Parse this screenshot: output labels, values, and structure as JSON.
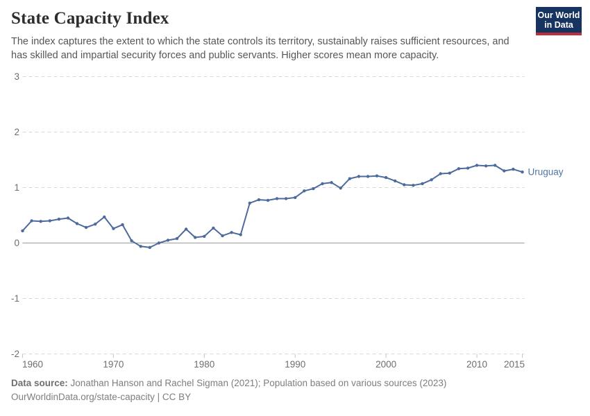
{
  "header": {
    "title": "State Capacity Index",
    "subtitle": "The index captures the extent to which the state controls its territory, sustainably raises sufficient resources, and has skilled and impartial security forces and public servants. Higher scores mean more capacity.",
    "logo": {
      "line1": "Our World",
      "line2": "in Data"
    }
  },
  "footer": {
    "source_label": "Data source:",
    "source_text": "Jonathan Hanson and Rachel Sigman (2021); Population based on various sources (2023)",
    "note": "OurWorldinData.org/state-capacity | CC BY"
  },
  "colors": {
    "line": "#4c6a9c",
    "entity_label": "#4f74a8",
    "grid": "#d9d9d9",
    "zero_line": "#9a9a9a",
    "axis_text": "#6e6e6e",
    "title": "#2d2d2d",
    "subtitle": "#565656",
    "footer": "#7e7e7e",
    "logo_bg": "#17335f",
    "logo_red": "#b9303c"
  },
  "chart_data": {
    "type": "line",
    "title": "State Capacity Index",
    "entity": "Uruguay",
    "xlabel": "",
    "ylabel": "",
    "xlim": [
      1960,
      2015
    ],
    "ylim": [
      -2,
      3
    ],
    "xticks": [
      1960,
      1970,
      1980,
      1990,
      2000,
      2010,
      2015
    ],
    "yticks": [
      3,
      2,
      1,
      0,
      -1,
      -2
    ],
    "grid": "horizontal-dashed",
    "legend_position": "end-of-line-label",
    "x": [
      1960,
      1961,
      1962,
      1963,
      1964,
      1965,
      1966,
      1967,
      1968,
      1969,
      1970,
      1971,
      1972,
      1973,
      1974,
      1975,
      1976,
      1977,
      1978,
      1979,
      1980,
      1981,
      1982,
      1983,
      1984,
      1985,
      1986,
      1987,
      1988,
      1989,
      1990,
      1991,
      1992,
      1993,
      1994,
      1995,
      1996,
      1997,
      1998,
      1999,
      2000,
      2001,
      2002,
      2003,
      2004,
      2005,
      2006,
      2007,
      2008,
      2009,
      2010,
      2011,
      2012,
      2013,
      2014,
      2015
    ],
    "series": [
      {
        "name": "Uruguay",
        "color": "#4c6a9c",
        "values": [
          0.22,
          0.4,
          0.39,
          0.4,
          0.43,
          0.45,
          0.35,
          0.28,
          0.34,
          0.47,
          0.26,
          0.33,
          0.04,
          -0.06,
          -0.08,
          0.0,
          0.05,
          0.08,
          0.25,
          0.1,
          0.12,
          0.27,
          0.13,
          0.19,
          0.15,
          0.72,
          0.78,
          0.77,
          0.8,
          0.8,
          0.82,
          0.94,
          0.98,
          1.07,
          1.09,
          0.99,
          1.16,
          1.2,
          1.2,
          1.21,
          1.18,
          1.12,
          1.05,
          1.04,
          1.07,
          1.14,
          1.25,
          1.26,
          1.34,
          1.35,
          1.4,
          1.39,
          1.4,
          1.3,
          1.33,
          1.28
        ]
      }
    ]
  }
}
